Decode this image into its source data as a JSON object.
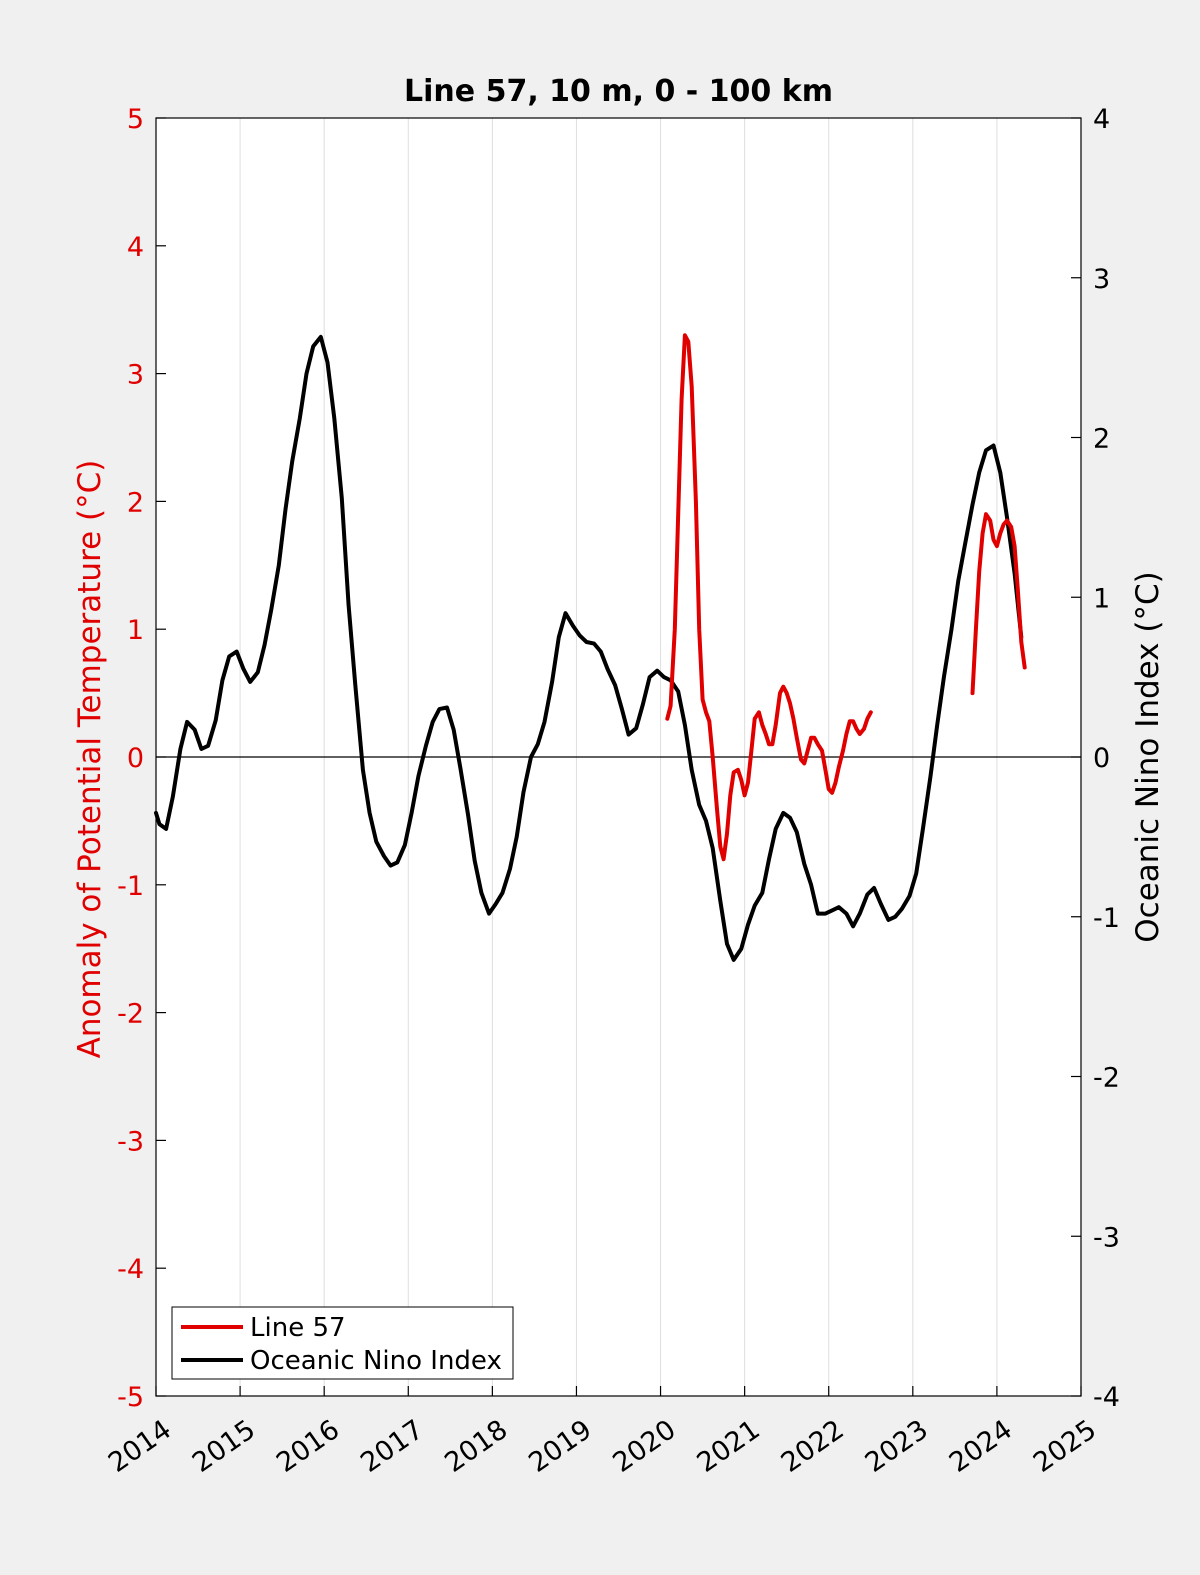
{
  "chart_data": {
    "type": "line",
    "title": "Line 57, 10 m, 0 - 100 km",
    "xlabel": "",
    "ylabel": "Anomaly of Potential Temperature (°C)",
    "y2label": "Oceanic Nino Index (°C)",
    "xlim": [
      2014,
      2025
    ],
    "ylim": [
      -5,
      5
    ],
    "y2lim": [
      -4,
      4
    ],
    "xticks": [
      "2014",
      "2015",
      "2016",
      "2017",
      "2018",
      "2019",
      "2020",
      "2021",
      "2022",
      "2023",
      "2024",
      "2025"
    ],
    "yticks": [
      "-5",
      "-4",
      "-3",
      "-2",
      "-1",
      "0",
      "1",
      "2",
      "3",
      "4",
      "5"
    ],
    "y2ticks": [
      "-4",
      "-3",
      "-2",
      "-1",
      "0",
      "1",
      "2",
      "3",
      "4"
    ],
    "grid": "vertical",
    "legend_position": "bottom-left",
    "colors": {
      "line57": "#e00000",
      "oni": "#000000",
      "background": "#f0f0f0",
      "axes": "#ffffff"
    },
    "series": [
      {
        "name": "Line 57",
        "axis": "left",
        "segments": [
          [
            [
              2020.08,
              0.3
            ],
            [
              2020.12,
              0.4
            ],
            [
              2020.17,
              1.0
            ],
            [
              2020.21,
              1.9
            ],
            [
              2020.25,
              2.8
            ],
            [
              2020.29,
              3.3
            ],
            [
              2020.33,
              3.25
            ],
            [
              2020.37,
              2.9
            ],
            [
              2020.42,
              2.0
            ],
            [
              2020.46,
              1.0
            ],
            [
              2020.5,
              0.45
            ],
            [
              2020.54,
              0.35
            ],
            [
              2020.58,
              0.28
            ],
            [
              2020.62,
              0.0
            ],
            [
              2020.67,
              -0.4
            ],
            [
              2020.71,
              -0.7
            ],
            [
              2020.75,
              -0.8
            ],
            [
              2020.79,
              -0.6
            ],
            [
              2020.83,
              -0.3
            ],
            [
              2020.87,
              -0.12
            ],
            [
              2020.92,
              -0.1
            ],
            [
              2020.96,
              -0.18
            ],
            [
              2021.0,
              -0.3
            ],
            [
              2021.04,
              -0.2
            ],
            [
              2021.08,
              0.05
            ],
            [
              2021.12,
              0.3
            ],
            [
              2021.17,
              0.35
            ],
            [
              2021.21,
              0.25
            ],
            [
              2021.25,
              0.18
            ],
            [
              2021.29,
              0.1
            ],
            [
              2021.33,
              0.1
            ],
            [
              2021.37,
              0.25
            ],
            [
              2021.42,
              0.5
            ],
            [
              2021.46,
              0.55
            ],
            [
              2021.5,
              0.5
            ],
            [
              2021.54,
              0.42
            ],
            [
              2021.58,
              0.3
            ],
            [
              2021.62,
              0.15
            ],
            [
              2021.67,
              -0.02
            ],
            [
              2021.71,
              -0.05
            ],
            [
              2021.75,
              0.05
            ],
            [
              2021.79,
              0.15
            ],
            [
              2021.83,
              0.15
            ],
            [
              2021.87,
              0.1
            ],
            [
              2021.92,
              0.05
            ],
            [
              2021.96,
              -0.1
            ],
            [
              2022.0,
              -0.25
            ],
            [
              2022.04,
              -0.28
            ],
            [
              2022.08,
              -0.2
            ],
            [
              2022.12,
              -0.08
            ],
            [
              2022.17,
              0.05
            ],
            [
              2022.21,
              0.18
            ],
            [
              2022.25,
              0.28
            ],
            [
              2022.29,
              0.28
            ],
            [
              2022.33,
              0.22
            ],
            [
              2022.37,
              0.18
            ],
            [
              2022.42,
              0.22
            ],
            [
              2022.46,
              0.3
            ],
            [
              2022.5,
              0.35
            ]
          ],
          [
            [
              2023.71,
              0.5
            ],
            [
              2023.75,
              1.0
            ],
            [
              2023.79,
              1.45
            ],
            [
              2023.83,
              1.75
            ],
            [
              2023.87,
              1.9
            ],
            [
              2023.92,
              1.85
            ],
            [
              2023.96,
              1.7
            ],
            [
              2024.0,
              1.65
            ],
            [
              2024.04,
              1.75
            ],
            [
              2024.08,
              1.82
            ],
            [
              2024.12,
              1.85
            ],
            [
              2024.17,
              1.8
            ],
            [
              2024.21,
              1.65
            ],
            [
              2024.25,
              1.3
            ],
            [
              2024.29,
              0.9
            ],
            [
              2024.33,
              0.7
            ]
          ]
        ]
      },
      {
        "name": "Oceanic Nino Index",
        "axis": "right",
        "points": [
          [
            2014.0,
            -0.35
          ],
          [
            2014.04,
            -0.42
          ],
          [
            2014.12,
            -0.45
          ],
          [
            2014.2,
            -0.25
          ],
          [
            2014.29,
            0.05
          ],
          [
            2014.37,
            0.22
          ],
          [
            2014.46,
            0.17
          ],
          [
            2014.54,
            0.05
          ],
          [
            2014.62,
            0.07
          ],
          [
            2014.71,
            0.23
          ],
          [
            2014.79,
            0.48
          ],
          [
            2014.87,
            0.63
          ],
          [
            2014.96,
            0.66
          ],
          [
            2015.04,
            0.55
          ],
          [
            2015.12,
            0.47
          ],
          [
            2015.21,
            0.53
          ],
          [
            2015.29,
            0.7
          ],
          [
            2015.37,
            0.92
          ],
          [
            2015.46,
            1.2
          ],
          [
            2015.54,
            1.55
          ],
          [
            2015.62,
            1.85
          ],
          [
            2015.71,
            2.12
          ],
          [
            2015.79,
            2.4
          ],
          [
            2015.87,
            2.57
          ],
          [
            2015.96,
            2.63
          ],
          [
            2016.04,
            2.47
          ],
          [
            2016.12,
            2.12
          ],
          [
            2016.21,
            1.62
          ],
          [
            2016.29,
            0.95
          ],
          [
            2016.37,
            0.45
          ],
          [
            2016.46,
            -0.08
          ],
          [
            2016.54,
            -0.35
          ],
          [
            2016.62,
            -0.53
          ],
          [
            2016.71,
            -0.62
          ],
          [
            2016.79,
            -0.68
          ],
          [
            2016.87,
            -0.66
          ],
          [
            2016.96,
            -0.55
          ],
          [
            2017.04,
            -0.35
          ],
          [
            2017.12,
            -0.12
          ],
          [
            2017.21,
            0.07
          ],
          [
            2017.29,
            0.22
          ],
          [
            2017.37,
            0.3
          ],
          [
            2017.46,
            0.31
          ],
          [
            2017.54,
            0.17
          ],
          [
            2017.62,
            -0.07
          ],
          [
            2017.71,
            -0.36
          ],
          [
            2017.79,
            -0.65
          ],
          [
            2017.87,
            -0.85
          ],
          [
            2017.96,
            -0.98
          ],
          [
            2018.04,
            -0.92
          ],
          [
            2018.12,
            -0.85
          ],
          [
            2018.21,
            -0.7
          ],
          [
            2018.29,
            -0.5
          ],
          [
            2018.37,
            -0.22
          ],
          [
            2018.46,
            0.0
          ],
          [
            2018.54,
            0.08
          ],
          [
            2018.62,
            0.22
          ],
          [
            2018.71,
            0.47
          ],
          [
            2018.79,
            0.75
          ],
          [
            2018.87,
            0.9
          ],
          [
            2018.96,
            0.82
          ],
          [
            2019.04,
            0.76
          ],
          [
            2019.12,
            0.72
          ],
          [
            2019.21,
            0.71
          ],
          [
            2019.29,
            0.66
          ],
          [
            2019.37,
            0.55
          ],
          [
            2019.46,
            0.45
          ],
          [
            2019.54,
            0.3
          ],
          [
            2019.62,
            0.14
          ],
          [
            2019.71,
            0.18
          ],
          [
            2019.79,
            0.33
          ],
          [
            2019.87,
            0.5
          ],
          [
            2019.96,
            0.54
          ],
          [
            2020.04,
            0.5
          ],
          [
            2020.12,
            0.48
          ],
          [
            2020.21,
            0.41
          ],
          [
            2020.29,
            0.2
          ],
          [
            2020.37,
            -0.08
          ],
          [
            2020.46,
            -0.3
          ],
          [
            2020.54,
            -0.4
          ],
          [
            2020.62,
            -0.57
          ],
          [
            2020.71,
            -0.9
          ],
          [
            2020.79,
            -1.17
          ],
          [
            2020.87,
            -1.27
          ],
          [
            2020.96,
            -1.2
          ],
          [
            2021.04,
            -1.05
          ],
          [
            2021.12,
            -0.93
          ],
          [
            2021.21,
            -0.85
          ],
          [
            2021.29,
            -0.64
          ],
          [
            2021.37,
            -0.45
          ],
          [
            2021.46,
            -0.35
          ],
          [
            2021.54,
            -0.38
          ],
          [
            2021.62,
            -0.47
          ],
          [
            2021.71,
            -0.67
          ],
          [
            2021.79,
            -0.8
          ],
          [
            2021.87,
            -0.98
          ],
          [
            2021.96,
            -0.98
          ],
          [
            2022.04,
            -0.96
          ],
          [
            2022.12,
            -0.94
          ],
          [
            2022.21,
            -0.98
          ],
          [
            2022.29,
            -1.06
          ],
          [
            2022.37,
            -0.98
          ],
          [
            2022.46,
            -0.86
          ],
          [
            2022.54,
            -0.82
          ],
          [
            2022.62,
            -0.92
          ],
          [
            2022.71,
            -1.02
          ],
          [
            2022.79,
            -1.0
          ],
          [
            2022.87,
            -0.95
          ],
          [
            2022.96,
            -0.87
          ],
          [
            2023.04,
            -0.73
          ],
          [
            2023.12,
            -0.45
          ],
          [
            2023.21,
            -0.12
          ],
          [
            2023.29,
            0.2
          ],
          [
            2023.37,
            0.5
          ],
          [
            2023.46,
            0.8
          ],
          [
            2023.54,
            1.1
          ],
          [
            2023.62,
            1.33
          ],
          [
            2023.71,
            1.58
          ],
          [
            2023.79,
            1.78
          ],
          [
            2023.87,
            1.92
          ],
          [
            2023.96,
            1.95
          ],
          [
            2024.04,
            1.78
          ],
          [
            2024.12,
            1.5
          ],
          [
            2024.21,
            1.15
          ],
          [
            2024.29,
            0.75
          ]
        ]
      }
    ]
  }
}
